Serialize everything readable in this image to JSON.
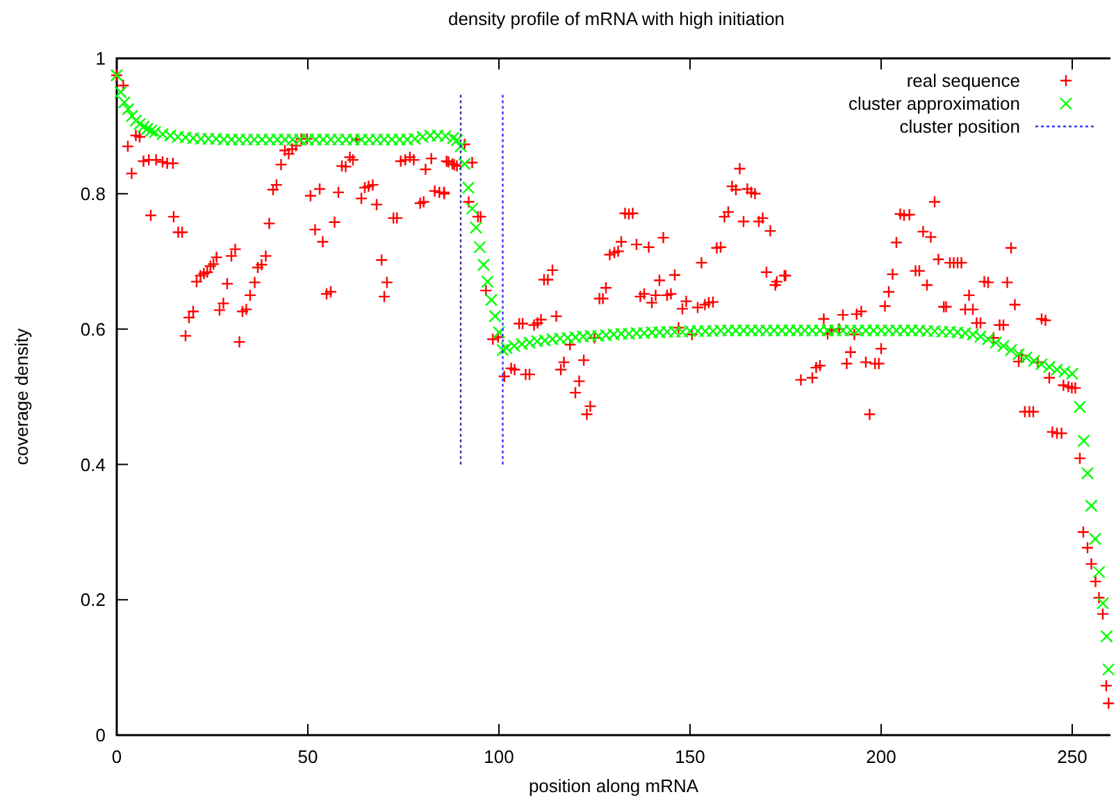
{
  "chart_data": {
    "type": "scatter",
    "title": "density profile of mRNA with high initiation",
    "xlabel": "position along mRNA",
    "ylabel": "coverage density",
    "xlim": [
      0,
      260
    ],
    "ylim": [
      0,
      1
    ],
    "xticks": [
      0,
      50,
      100,
      150,
      200,
      250
    ],
    "yticks": [
      0,
      0.2,
      0.4,
      0.6,
      0.8,
      1
    ],
    "grid": false,
    "legend": "top right",
    "series": [
      {
        "name": "real sequence",
        "color": "#ff0000",
        "marker": "plus",
        "x": [
          0,
          1.7,
          2.9,
          3.9,
          5,
          6,
          7,
          8.4,
          8.9,
          10.3,
          12,
          13.2,
          14.7,
          14.9,
          16.1,
          17.1,
          18,
          18.9,
          20,
          20.9,
          21.9,
          22.8,
          23.7,
          24.5,
          25.3,
          26.1,
          26.9,
          27.9,
          28.9,
          30,
          31,
          32.1,
          32.9,
          33.9,
          34.9,
          36.1,
          36.9,
          37.9,
          39,
          39.9,
          40.9,
          41.8,
          43,
          44,
          45,
          45.9,
          46.9,
          48.3,
          49.8,
          50.7,
          51.9,
          53.1,
          53.9,
          54.9,
          56,
          57,
          58,
          58.9,
          59.9,
          61,
          61.8,
          62.8,
          64,
          64.9,
          65.9,
          67,
          68,
          69.3,
          70,
          70.7,
          72.4,
          73.3,
          74.3,
          75.5,
          76.7,
          77.7,
          79.4,
          80.3,
          80.8,
          82.3,
          83.2,
          84.4,
          85.6,
          85.7,
          86.3,
          86.8,
          87.8,
          88.3,
          89,
          91,
          92.1,
          93,
          94.5,
          95.2,
          96.6,
          98.4,
          99.8,
          101.4,
          103.2,
          104.1,
          105.3,
          106.2,
          107,
          108,
          109.2,
          110.1,
          111,
          111.8,
          112.8,
          114,
          115,
          116.2,
          117,
          118.6,
          120,
          121,
          122.2,
          123,
          123.9,
          125,
          126.3,
          127.2,
          128,
          129,
          130.2,
          131.2,
          132,
          133,
          134,
          135,
          136,
          137,
          138,
          139.2,
          140,
          141,
          142,
          143,
          144,
          145,
          146,
          147,
          148,
          149,
          150.5,
          152,
          153,
          153.9,
          154.9,
          156,
          157,
          158,
          159,
          160,
          161,
          162,
          163,
          164,
          165,
          166,
          167,
          168,
          169,
          170,
          171,
          172.3,
          172.7,
          174.7,
          175,
          179,
          182,
          183,
          184,
          185,
          186,
          187,
          189,
          190,
          191,
          192,
          193,
          193.6,
          194.8,
          196,
          197,
          198.4,
          199.4,
          200,
          201,
          202,
          203,
          204,
          205,
          206,
          207.4,
          209,
          210,
          211,
          212,
          213,
          214,
          215,
          216.4,
          217,
          218,
          219,
          220,
          221,
          222,
          223,
          224,
          225,
          226,
          227,
          228,
          229.4,
          231,
          232,
          233,
          234,
          235,
          236,
          236.7,
          237.6,
          238.8,
          239.8,
          241,
          242,
          243,
          244,
          244.8,
          246,
          247.2,
          247.7,
          249,
          249.9,
          250.8,
          252,
          252.9,
          254,
          255,
          256.1,
          257,
          258,
          258.9,
          259.5
        ],
        "values": [
          0.975,
          0.96,
          0.87,
          0.83,
          0.886,
          0.884,
          0.848,
          0.85,
          0.768,
          0.85,
          0.847,
          0.845,
          0.845,
          0.766,
          0.743,
          0.743,
          0.59,
          0.617,
          0.626,
          0.67,
          0.679,
          0.682,
          0.684,
          0.693,
          0.696,
          0.706,
          0.628,
          0.638,
          0.667,
          0.708,
          0.718,
          0.581,
          0.626,
          0.629,
          0.65,
          0.669,
          0.691,
          0.695,
          0.708,
          0.756,
          0.806,
          0.813,
          0.843,
          0.864,
          0.859,
          0.866,
          0.871,
          0.881,
          0.881,
          0.797,
          0.747,
          0.807,
          0.729,
          0.652,
          0.655,
          0.758,
          0.802,
          0.841,
          0.84,
          0.854,
          0.85,
          0.88,
          0.793,
          0.809,
          0.811,
          0.813,
          0.784,
          0.702,
          0.648,
          0.669,
          0.764,
          0.764,
          0.848,
          0.85,
          0.854,
          0.85,
          0.786,
          0.788,
          0.836,
          0.852,
          0.804,
          0.802,
          0.802,
          0.8,
          0.848,
          0.847,
          0.844,
          0.843,
          0.841,
          0.873,
          0.788,
          0.846,
          0.766,
          0.766,
          0.657,
          0.585,
          0.588,
          0.53,
          0.542,
          0.54,
          0.608,
          0.608,
          0.533,
          0.533,
          0.606,
          0.609,
          0.614,
          0.673,
          0.673,
          0.687,
          0.619,
          0.54,
          0.551,
          0.577,
          0.506,
          0.523,
          0.554,
          0.474,
          0.486,
          0.587,
          0.645,
          0.645,
          0.661,
          0.71,
          0.713,
          0.715,
          0.729,
          0.771,
          0.77,
          0.771,
          0.725,
          0.648,
          0.652,
          0.721,
          0.639,
          0.65,
          0.672,
          0.735,
          0.65,
          0.652,
          0.68,
          0.602,
          0.63,
          0.641,
          0.592,
          0.632,
          0.698,
          0.636,
          0.639,
          0.64,
          0.72,
          0.721,
          0.766,
          0.773,
          0.811,
          0.806,
          0.837,
          0.759,
          0.807,
          0.802,
          0.8,
          0.759,
          0.764,
          0.684,
          0.745,
          0.665,
          0.67,
          0.679,
          0.679,
          0.525,
          0.528,
          0.543,
          0.546,
          0.615,
          0.593,
          0.598,
          0.6,
          0.621,
          0.549,
          0.566,
          0.592,
          0.622,
          0.626,
          0.551,
          0.474,
          0.549,
          0.549,
          0.571,
          0.634,
          0.655,
          0.681,
          0.728,
          0.77,
          0.768,
          0.769,
          0.686,
          0.686,
          0.744,
          0.665,
          0.736,
          0.788,
          0.703,
          0.633,
          0.633,
          0.698,
          0.698,
          0.698,
          0.698,
          0.629,
          0.65,
          0.629,
          0.609,
          0.609,
          0.67,
          0.669,
          0.587,
          0.606,
          0.606,
          0.669,
          0.72,
          0.636,
          0.552,
          0.561,
          0.478,
          0.478,
          0.478,
          0.551,
          0.615,
          0.613,
          0.528,
          0.448,
          0.446,
          0.446,
          0.517,
          0.515,
          0.513,
          0.513,
          0.409,
          0.3,
          0.277,
          0.253,
          0.227,
          0.203,
          0.179,
          0.073,
          0.047
        ]
      },
      {
        "name": "cluster approximation",
        "color": "#00ff00",
        "marker": "cross",
        "x": [
          0,
          1,
          2,
          3,
          4,
          5,
          6,
          7,
          8,
          9,
          10,
          12,
          14,
          16,
          18,
          20,
          22,
          24,
          26,
          28,
          30,
          32,
          34,
          36,
          38,
          40,
          42,
          44,
          46,
          48,
          50,
          52,
          54,
          56,
          58,
          60,
          62,
          64,
          66,
          68,
          70,
          72,
          74,
          76,
          78,
          80,
          82,
          84,
          86,
          88,
          89,
          90,
          91,
          92,
          93,
          94,
          95,
          96,
          97,
          98,
          99,
          100,
          101,
          102,
          104,
          106,
          108,
          110,
          112,
          114,
          116,
          118,
          120,
          122,
          124,
          126,
          128,
          130,
          132,
          134,
          136,
          138,
          140,
          142,
          144,
          146,
          148,
          150,
          152,
          154,
          156,
          158,
          160,
          162,
          164,
          166,
          168,
          170,
          172,
          174,
          176,
          178,
          180,
          182,
          184,
          186,
          188,
          190,
          192,
          194,
          196,
          198,
          200,
          202,
          204,
          206,
          208,
          210,
          212,
          214,
          216,
          218,
          220,
          222,
          224,
          226,
          228,
          230,
          232,
          234,
          236,
          238,
          240,
          242,
          244,
          246,
          248,
          250,
          252,
          253,
          254,
          255,
          256,
          257,
          258,
          259,
          259.5
        ],
        "values": [
          0.975,
          0.95,
          0.935,
          0.925,
          0.915,
          0.908,
          0.903,
          0.899,
          0.896,
          0.893,
          0.891,
          0.888,
          0.886,
          0.884,
          0.883,
          0.882,
          0.881,
          0.881,
          0.881,
          0.88,
          0.88,
          0.88,
          0.88,
          0.88,
          0.88,
          0.88,
          0.88,
          0.88,
          0.88,
          0.88,
          0.88,
          0.88,
          0.88,
          0.88,
          0.88,
          0.88,
          0.88,
          0.88,
          0.88,
          0.88,
          0.88,
          0.88,
          0.88,
          0.88,
          0.881,
          0.884,
          0.886,
          0.886,
          0.885,
          0.882,
          0.879,
          0.87,
          0.844,
          0.809,
          0.778,
          0.75,
          0.721,
          0.695,
          0.67,
          0.643,
          0.619,
          0.595,
          0.569,
          0.572,
          0.575,
          0.578,
          0.58,
          0.582,
          0.583,
          0.585,
          0.586,
          0.587,
          0.588,
          0.589,
          0.59,
          0.59,
          0.591,
          0.592,
          0.593,
          0.593,
          0.594,
          0.594,
          0.595,
          0.595,
          0.596,
          0.596,
          0.596,
          0.597,
          0.597,
          0.597,
          0.597,
          0.598,
          0.598,
          0.598,
          0.598,
          0.598,
          0.598,
          0.598,
          0.598,
          0.598,
          0.598,
          0.598,
          0.598,
          0.598,
          0.598,
          0.598,
          0.598,
          0.598,
          0.598,
          0.598,
          0.598,
          0.598,
          0.598,
          0.598,
          0.598,
          0.598,
          0.598,
          0.598,
          0.597,
          0.597,
          0.596,
          0.596,
          0.595,
          0.594,
          0.592,
          0.589,
          0.585,
          0.58,
          0.575,
          0.569,
          0.563,
          0.558,
          0.553,
          0.548,
          0.544,
          0.54,
          0.537,
          0.534,
          0.485,
          0.435,
          0.387,
          0.339,
          0.29,
          0.241,
          0.195,
          0.146,
          0.097
        ]
      },
      {
        "color": "#3333aa",
        "type": "line",
        "line_style": "dotted",
        "x": [
          90,
          90
        ],
        "values": [
          0.4,
          0.95
        ]
      },
      {
        "name": "cluster position",
        "color": "#3333ff",
        "type": "line",
        "line_style": "dotted",
        "x": [
          101,
          101
        ],
        "values": [
          0.4,
          0.95
        ]
      }
    ]
  }
}
